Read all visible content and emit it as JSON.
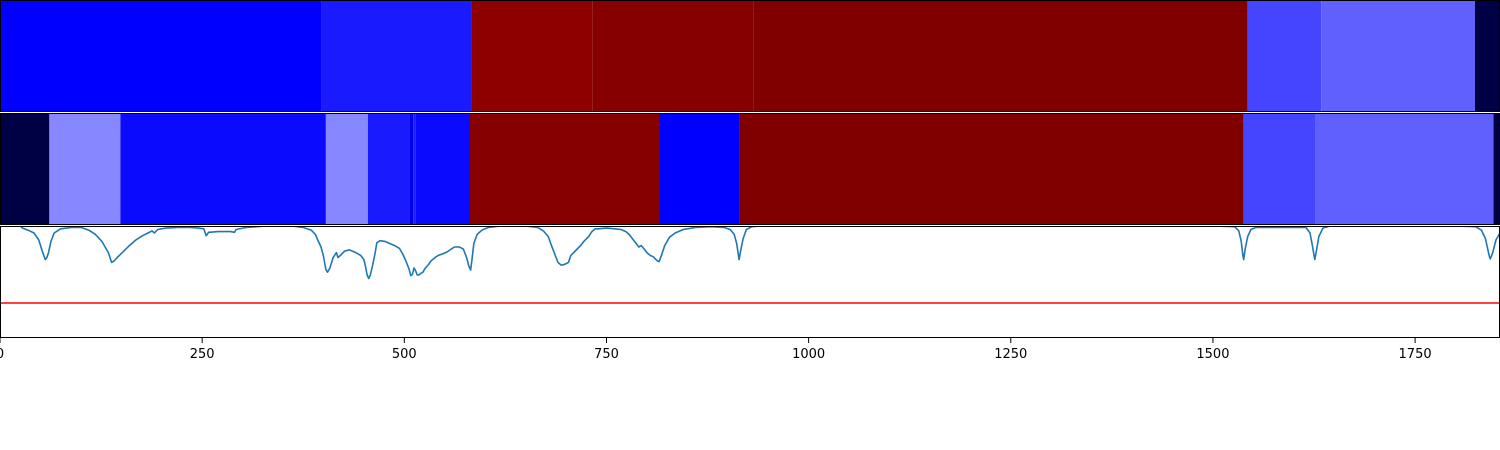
{
  "chart_data": [
    {
      "type": "heatmap",
      "segments": [
        {
          "x0": 0,
          "x1": 398,
          "color": "#0000ff"
        },
        {
          "x0": 398,
          "x1": 583,
          "color": "#1a1aff"
        },
        {
          "x0": 583,
          "x1": 733,
          "color": "#8e0000"
        },
        {
          "x0": 733,
          "x1": 932,
          "color": "#870000"
        },
        {
          "x0": 932,
          "x1": 1543,
          "color": "#800000"
        },
        {
          "x0": 1543,
          "x1": 1634,
          "color": "#4545ff"
        },
        {
          "x0": 1634,
          "x1": 1824,
          "color": "#6060ff"
        },
        {
          "x0": 1824,
          "x1": 1855,
          "color": "#000044"
        }
      ]
    },
    {
      "type": "heatmap",
      "segments": [
        {
          "x0": 0,
          "x1": 61,
          "color": "#000044"
        },
        {
          "x0": 61,
          "x1": 149,
          "color": "#8787ff"
        },
        {
          "x0": 149,
          "x1": 403,
          "color": "#0a0aff"
        },
        {
          "x0": 403,
          "x1": 455,
          "color": "#8787ff"
        },
        {
          "x0": 455,
          "x1": 507,
          "color": "#1a1aff"
        },
        {
          "x0": 507,
          "x1": 511,
          "color": "#0000ee"
        },
        {
          "x0": 511,
          "x1": 514,
          "color": "#1a1aff"
        },
        {
          "x0": 514,
          "x1": 580,
          "color": "#0a0aff"
        },
        {
          "x0": 580,
          "x1": 815,
          "color": "#860000"
        },
        {
          "x0": 815,
          "x1": 915,
          "color": "#0000ff"
        },
        {
          "x0": 915,
          "x1": 1538,
          "color": "#800000"
        },
        {
          "x0": 1538,
          "x1": 1627,
          "color": "#4545ff"
        },
        {
          "x0": 1627,
          "x1": 1847,
          "color": "#6060ff"
        },
        {
          "x0": 1847,
          "x1": 1855,
          "color": "#000044"
        }
      ]
    },
    {
      "type": "line",
      "xlim": [
        0,
        1855
      ],
      "ylim": [
        -0.6,
        1.0
      ],
      "xticks": [
        0,
        250,
        500,
        750,
        1000,
        1250,
        1500,
        1750
      ],
      "xtick_labels": [
        "0",
        "250",
        "500",
        "750",
        "1000",
        "1250",
        "1500",
        "1750"
      ],
      "threshold": {
        "y": -0.1,
        "color": "#ff0000"
      },
      "series": [
        {
          "color": "#1f77b4",
          "points": [
            [
              25,
              1.0
            ],
            [
              28,
              0.97
            ],
            [
              35,
              0.94
            ],
            [
              42,
              0.9
            ],
            [
              48,
              0.8
            ],
            [
              52,
              0.65
            ],
            [
              56,
              0.52
            ],
            [
              58,
              0.55
            ],
            [
              60,
              0.62
            ],
            [
              63,
              0.78
            ],
            [
              67,
              0.9
            ],
            [
              75,
              0.96
            ],
            [
              88,
              0.98
            ],
            [
              100,
              0.98
            ],
            [
              110,
              0.94
            ],
            [
              118,
              0.88
            ],
            [
              126,
              0.78
            ],
            [
              134,
              0.62
            ],
            [
              138,
              0.48
            ],
            [
              141,
              0.5
            ],
            [
              145,
              0.55
            ],
            [
              152,
              0.63
            ],
            [
              160,
              0.72
            ],
            [
              168,
              0.8
            ],
            [
              176,
              0.86
            ],
            [
              183,
              0.9
            ],
            [
              188,
              0.93
            ],
            [
              191,
              0.9
            ],
            [
              195,
              0.95
            ],
            [
              205,
              0.97
            ],
            [
              220,
              0.98
            ],
            [
              235,
              0.98
            ],
            [
              245,
              0.97
            ],
            [
              252,
              0.96
            ],
            [
              255,
              0.86
            ],
            [
              258,
              0.91
            ],
            [
              270,
              0.92
            ],
            [
              285,
              0.92
            ],
            [
              290,
              0.91
            ],
            [
              292,
              0.95
            ],
            [
              305,
              0.98
            ],
            [
              330,
              1.0
            ],
            [
              360,
              1.0
            ],
            [
              375,
              0.98
            ],
            [
              385,
              0.94
            ],
            [
              390,
              0.88
            ],
            [
              393,
              0.8
            ],
            [
              397,
              0.7
            ],
            [
              400,
              0.57
            ],
            [
              403,
              0.38
            ],
            [
              405,
              0.34
            ],
            [
              408,
              0.4
            ],
            [
              412,
              0.55
            ],
            [
              416,
              0.62
            ],
            [
              418,
              0.55
            ],
            [
              421,
              0.58
            ],
            [
              426,
              0.64
            ],
            [
              432,
              0.66
            ],
            [
              440,
              0.62
            ],
            [
              446,
              0.58
            ],
            [
              450,
              0.52
            ],
            [
              452,
              0.42
            ],
            [
              454,
              0.3
            ],
            [
              456,
              0.25
            ],
            [
              458,
              0.3
            ],
            [
              461,
              0.45
            ],
            [
              464,
              0.62
            ],
            [
              466,
              0.76
            ],
            [
              470,
              0.79
            ],
            [
              476,
              0.78
            ],
            [
              482,
              0.75
            ],
            [
              488,
              0.72
            ],
            [
              494,
              0.68
            ],
            [
              498,
              0.6
            ],
            [
              502,
              0.5
            ],
            [
              506,
              0.38
            ],
            [
              508,
              0.29
            ],
            [
              510,
              0.31
            ],
            [
              512,
              0.4
            ],
            [
              514,
              0.36
            ],
            [
              516,
              0.3
            ],
            [
              518,
              0.3
            ],
            [
              520,
              0.32
            ],
            [
              523,
              0.34
            ],
            [
              526,
              0.4
            ],
            [
              530,
              0.45
            ],
            [
              533,
              0.5
            ],
            [
              538,
              0.55
            ],
            [
              542,
              0.58
            ],
            [
              547,
              0.6
            ],
            [
              553,
              0.63
            ],
            [
              558,
              0.67
            ],
            [
              562,
              0.7
            ],
            [
              568,
              0.7
            ],
            [
              573,
              0.67
            ],
            [
              577,
              0.55
            ],
            [
              580,
              0.42
            ],
            [
              582,
              0.37
            ],
            [
              584,
              0.55
            ],
            [
              586,
              0.75
            ],
            [
              590,
              0.88
            ],
            [
              596,
              0.94
            ],
            [
              604,
              0.98
            ],
            [
              620,
              1.0
            ],
            [
              650,
              1.0
            ],
            [
              665,
              0.98
            ],
            [
              672,
              0.93
            ],
            [
              678,
              0.85
            ],
            [
              682,
              0.72
            ],
            [
              686,
              0.6
            ],
            [
              690,
              0.48
            ],
            [
              694,
              0.44
            ],
            [
              698,
              0.45
            ],
            [
              703,
              0.48
            ],
            [
              706,
              0.58
            ],
            [
              712,
              0.65
            ],
            [
              718,
              0.72
            ],
            [
              722,
              0.78
            ],
            [
              728,
              0.85
            ],
            [
              732,
              0.92
            ],
            [
              736,
              0.96
            ],
            [
              740,
              0.96
            ],
            [
              750,
              0.97
            ],
            [
              760,
              0.96
            ],
            [
              768,
              0.95
            ],
            [
              774,
              0.92
            ],
            [
              778,
              0.88
            ],
            [
              782,
              0.82
            ],
            [
              786,
              0.76
            ],
            [
              790,
              0.7
            ],
            [
              793,
              0.72
            ],
            [
              796,
              0.68
            ],
            [
              800,
              0.62
            ],
            [
              804,
              0.58
            ],
            [
              808,
              0.56
            ],
            [
              813,
              0.5
            ],
            [
              815,
              0.49
            ],
            [
              818,
              0.58
            ],
            [
              822,
              0.72
            ],
            [
              828,
              0.84
            ],
            [
              835,
              0.9
            ],
            [
              845,
              0.95
            ],
            [
              860,
              0.98
            ],
            [
              880,
              0.99
            ],
            [
              895,
              0.98
            ],
            [
              903,
              0.95
            ],
            [
              908,
              0.88
            ],
            [
              911,
              0.75
            ],
            [
              913,
              0.6
            ],
            [
              914,
              0.52
            ],
            [
              916,
              0.65
            ],
            [
              919,
              0.82
            ],
            [
              923,
              0.95
            ],
            [
              930,
              0.99
            ],
            [
              940,
              1.0
            ],
            [
              1000,
              1.0
            ],
            [
              1100,
              1.0
            ],
            [
              1200,
              1.0
            ],
            [
              1300,
              1.0
            ],
            [
              1400,
              1.0
            ],
            [
              1500,
              1.0
            ],
            [
              1527,
              0.99
            ],
            [
              1532,
              0.93
            ],
            [
              1535,
              0.78
            ],
            [
              1537,
              0.58
            ],
            [
              1538,
              0.52
            ],
            [
              1540,
              0.68
            ],
            [
              1543,
              0.85
            ],
            [
              1547,
              0.95
            ],
            [
              1553,
              0.98
            ],
            [
              1600,
              0.98
            ],
            [
              1615,
              0.98
            ],
            [
              1620,
              0.9
            ],
            [
              1623,
              0.72
            ],
            [
              1625,
              0.58
            ],
            [
              1626,
              0.52
            ],
            [
              1628,
              0.65
            ],
            [
              1631,
              0.85
            ],
            [
              1636,
              0.97
            ],
            [
              1645,
              1.0
            ],
            [
              1700,
              1.0
            ],
            [
              1800,
              1.0
            ],
            [
              1825,
              0.99
            ],
            [
              1832,
              0.94
            ],
            [
              1837,
              0.82
            ],
            [
              1840,
              0.66
            ],
            [
              1842,
              0.56
            ],
            [
              1843,
              0.53
            ],
            [
              1846,
              0.62
            ],
            [
              1850,
              0.8
            ],
            [
              1855,
              0.9
            ]
          ]
        }
      ]
    }
  ]
}
